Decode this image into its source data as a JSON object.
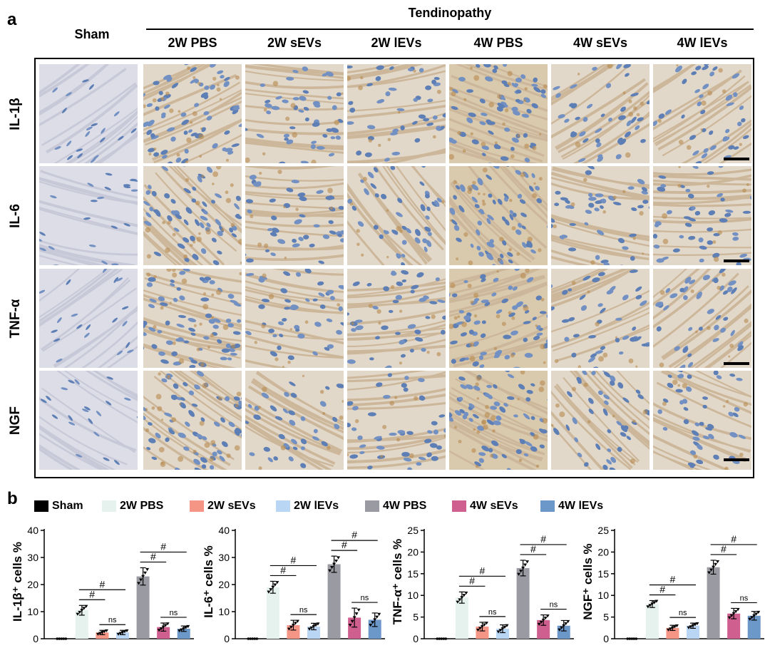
{
  "panel_a_label": "a",
  "panel_b_label": "b",
  "group_header": "Tendinopathy",
  "columns": [
    "Sham",
    "2W PBS",
    "2W sEVs",
    "2W lEVs",
    "4W PBS",
    "4W sEVs",
    "4W lEVs"
  ],
  "rows": [
    "IL-1β",
    "IL-6",
    "TNF-α",
    "NGF"
  ],
  "legend": [
    {
      "label": "Sham",
      "color": "#000000"
    },
    {
      "label": "2W PBS",
      "color": "#e6f2ee"
    },
    {
      "label": "2W sEVs",
      "color": "#f59585"
    },
    {
      "label": "2W lEVs",
      "color": "#b9d6f5"
    },
    {
      "label": "4W PBS",
      "color": "#9a9aa3"
    },
    {
      "label": "4W sEVs",
      "color": "#cf5f8e"
    },
    {
      "label": "4W lEVs",
      "color": "#6c97c9"
    }
  ],
  "chart_data": [
    {
      "type": "bar",
      "ylabel": "IL-1β⁺ cells %",
      "ylim": [
        0,
        40
      ],
      "yticks": [
        0,
        10,
        20,
        30,
        40
      ],
      "categories": [
        "Sham",
        "2W PBS",
        "2W sEVs",
        "2W lEVs",
        "4W PBS",
        "4W sEVs",
        "4W lEVs"
      ],
      "values": [
        0,
        10.5,
        2.3,
        2.3,
        23,
        4.3,
        3.7
      ],
      "errors": [
        0,
        1.8,
        0.8,
        0.8,
        3.2,
        1.5,
        1.0
      ],
      "annotations": [
        "#",
        "#",
        "ns",
        "#",
        "#",
        "ns"
      ]
    },
    {
      "type": "bar",
      "ylabel": "IL-6⁺ cells %",
      "ylim": [
        0,
        40
      ],
      "yticks": [
        0,
        10,
        20,
        30,
        40
      ],
      "categories": [
        "Sham",
        "2W PBS",
        "2W sEVs",
        "2W lEVs",
        "4W PBS",
        "4W sEVs",
        "4W lEVs"
      ],
      "values": [
        0,
        19,
        5,
        4.5,
        27.5,
        7.8,
        7
      ],
      "errors": [
        0,
        2.2,
        1.8,
        1.2,
        3.0,
        3.5,
        2.5
      ],
      "annotations": [
        "#",
        "#",
        "ns",
        "#",
        "#",
        "ns"
      ]
    },
    {
      "type": "bar",
      "ylabel": "TNF-α⁺ cells %",
      "ylim": [
        0,
        25
      ],
      "yticks": [
        0,
        5,
        10,
        15,
        20,
        25
      ],
      "categories": [
        "Sham",
        "2W PBS",
        "2W sEVs",
        "2W lEVs",
        "4W PBS",
        "4W sEVs",
        "4W lEVs"
      ],
      "values": [
        0,
        9.5,
        2.8,
        2.3,
        16.3,
        4.3,
        3
      ],
      "errors": [
        0,
        1.3,
        1.0,
        0.9,
        1.8,
        1.2,
        1.2
      ],
      "annotations": [
        "#",
        "#",
        "ns",
        "#",
        "#",
        "ns"
      ]
    },
    {
      "type": "bar",
      "ylabel": "NGF⁺ cells %",
      "ylim": [
        0,
        25
      ],
      "yticks": [
        0,
        5,
        10,
        15,
        20,
        25
      ],
      "categories": [
        "Sham",
        "2W PBS",
        "2W sEVs",
        "2W lEVs",
        "4W PBS",
        "4W sEVs",
        "4W lEVs"
      ],
      "values": [
        0,
        8,
        2.5,
        3,
        16.5,
        5.8,
        5.3
      ],
      "errors": [
        0,
        0.8,
        0.6,
        0.6,
        1.6,
        1.2,
        1.0
      ],
      "annotations": [
        "#",
        "#",
        "ns",
        "#",
        "#",
        "ns"
      ]
    }
  ]
}
